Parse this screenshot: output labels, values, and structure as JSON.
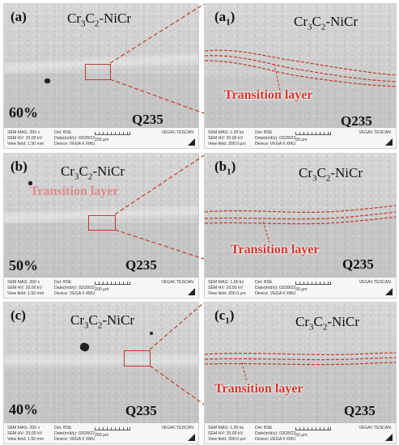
{
  "panels": [
    {
      "letter": "(a)",
      "material_base": "Cr",
      "sub1": "3",
      "material_mid": "C",
      "sub2": "2",
      "material_tail": "-NiCr",
      "percent": "60%",
      "substrate": "Q235",
      "meta": {
        "line1": "SEM MAG: 200 x",
        "line2": "SEM HV: 20.00 kV",
        "line3": "View field: 1.50 mm",
        "det": "Det: BSE",
        "date": "Date(m/d/y): 03/28/22",
        "device": "Device: VEGA II XMU",
        "scale": "200 μm",
        "brand": "VEGA\\\\ TESCAN"
      }
    },
    {
      "letter": "(a1)",
      "material_base": "Cr",
      "sub1": "3",
      "material_mid": "C",
      "sub2": "2",
      "material_tail": "-NiCr",
      "transition": "Transition layer",
      "substrate": "Q235",
      "meta": {
        "line1": "SEM MAG: 1.00 kx",
        "line2": "SEM HV: 20.00 kV",
        "line3": "View field: 300.0 μm",
        "det": "Det: BSE",
        "date": "Date(m/d/y): 03/28/22",
        "device": "Device: VEGA II XMU",
        "scale": "50 μm",
        "brand": "VEGA\\\\ TESCAN"
      }
    },
    {
      "letter": "(b)",
      "material_base": "Cr",
      "sub1": "3",
      "material_mid": "C",
      "sub2": "2",
      "material_tail": "-NiCr",
      "ghost": "Transition layer",
      "percent": "50%",
      "substrate": "Q235",
      "meta": {
        "line1": "SEM MAG: 200 x",
        "line2": "SEM HV: 20.00 kV",
        "line3": "View field: 1.50 mm",
        "det": "Det: BSE",
        "date": "Date(m/d/y): 03/28/22",
        "device": "Device: VEGA II XMU",
        "scale": "200 μm",
        "brand": "VEGA\\\\ TESCAN"
      }
    },
    {
      "letter": "(b1)",
      "material_base": "Cr",
      "sub1": "3",
      "material_mid": "C",
      "sub2": "2",
      "material_tail": "-NiCr",
      "transition": "Transition layer",
      "substrate": "Q235",
      "meta": {
        "line1": "SEM MAG: 1.00 kx",
        "line2": "SEM HV: 20.00 kV",
        "line3": "View field: 300.0 μm",
        "det": "Det: BSE",
        "date": "Date(m/d/y): 03/28/22",
        "device": "Device: VEGA II XMU",
        "scale": "50 μm",
        "brand": "VEGA\\\\ TESCAN"
      }
    },
    {
      "letter": "(c)",
      "material_base": "Cr",
      "sub1": "3",
      "material_mid": "C",
      "sub2": "2",
      "material_tail": "-NiCr",
      "percent": "40%",
      "substrate": "Q235",
      "meta": {
        "line1": "SEM MAG: 200 x",
        "line2": "SEM HV: 20.00 kV",
        "line3": "View field: 1.50 mm",
        "det": "Det: BSE",
        "date": "Date(m/d/y): 03/28/22",
        "device": "Device: VEGA II XMU",
        "scale": "200 μm",
        "brand": "VEGA\\\\ TESCAN"
      }
    },
    {
      "letter": "(c1)",
      "material_base": "Cr",
      "sub1": "3",
      "material_mid": "C",
      "sub2": "2",
      "material_tail": "-NiCr",
      "transition": "Transition layer",
      "substrate": "Q235",
      "meta": {
        "line1": "SEM MAG: 1.00 kx",
        "line2": "SEM HV: 20.00 kV",
        "line3": "View field: 300.0 μm",
        "det": "Det: BSE",
        "date": "Date(m/d/y): 03/28/22",
        "device": "Device: VEGA II XMU",
        "scale": "50 μm",
        "brand": "VEGA\\\\ TESCAN"
      }
    }
  ],
  "colors": {
    "annotation_red": "#c0392b",
    "transition_text": "#d9362b"
  }
}
